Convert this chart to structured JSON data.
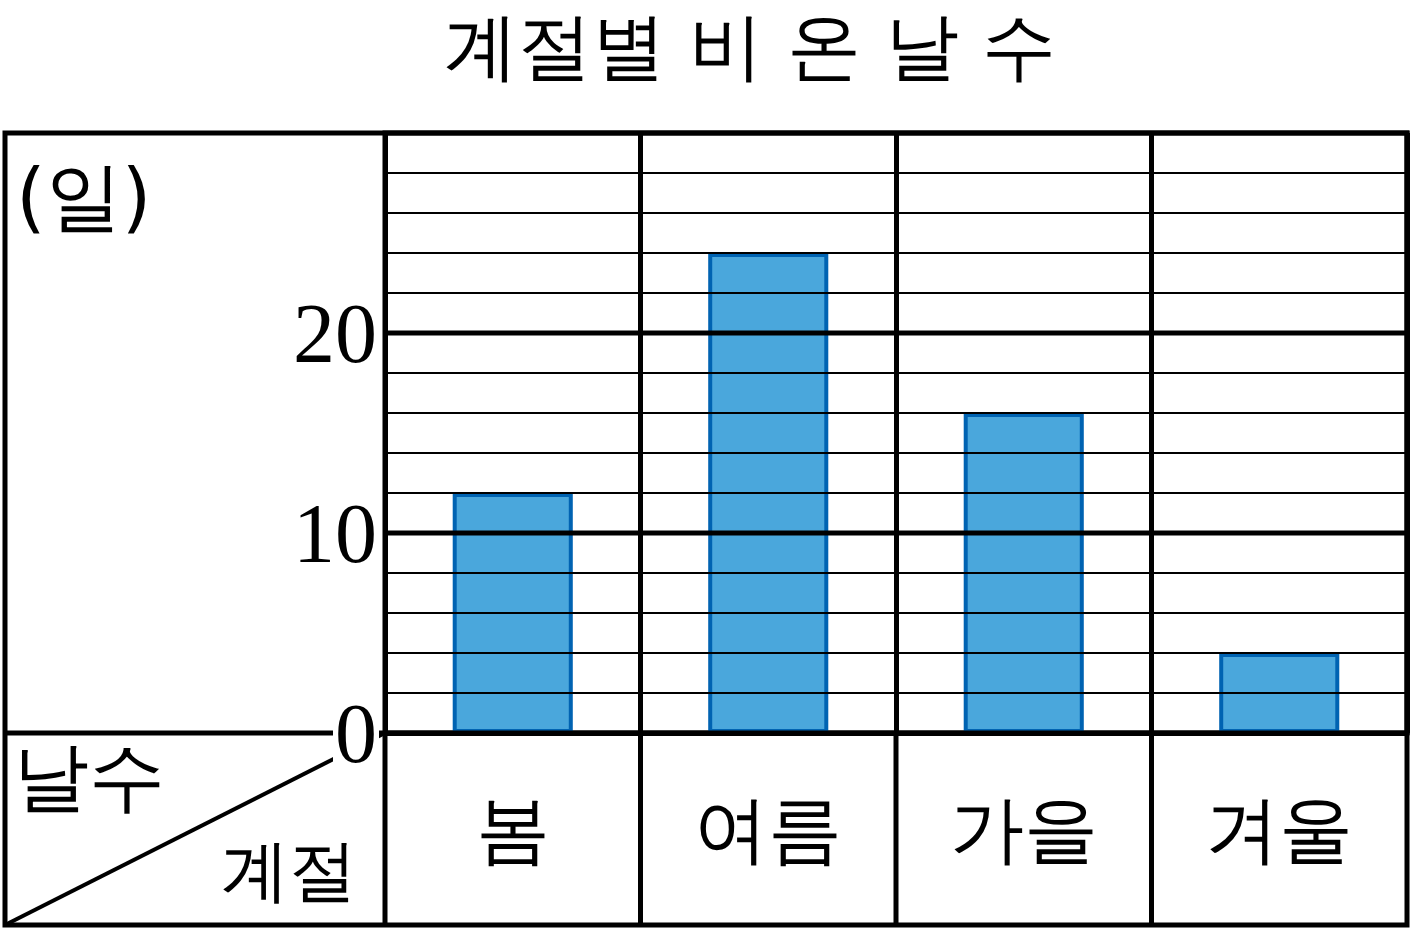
{
  "chart_data": {
    "type": "bar",
    "title": "계절별 비 온 날 수",
    "xlabel": "계절",
    "ylabel": "날수",
    "annotations": [
      "(일)"
    ],
    "categories": [
      "봄",
      "여름",
      "가을",
      "겨울"
    ],
    "values": [
      12,
      24,
      16,
      4
    ],
    "color": "#4aa7dc",
    "ylim": [
      0,
      30
    ],
    "yticks": [
      0,
      {
        "value": 2,
        "label": null
      },
      {
        "value": 4,
        "label": null
      },
      {
        "value": 6,
        "label": null
      },
      {
        "value": 8,
        "label": null
      },
      10,
      {
        "value": 12,
        "label": null
      },
      {
        "value": 14,
        "label": null
      },
      {
        "value": 16,
        "label": null
      },
      {
        "value": 18,
        "label": null
      },
      20,
      {
        "value": 22,
        "label": null
      },
      {
        "value": 24,
        "label": null
      },
      {
        "value": 26,
        "label": null
      },
      {
        "value": 28,
        "label": null
      }
    ],
    "grid": true
  }
}
